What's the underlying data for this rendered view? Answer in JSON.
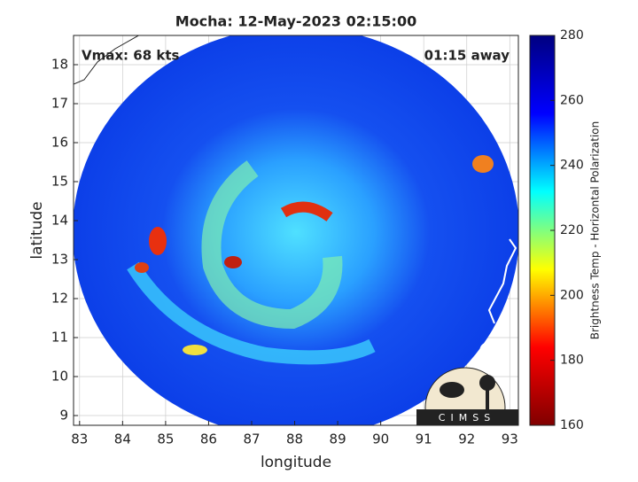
{
  "map": {
    "title": "Mocha: 12-May-2023 02:15:00",
    "annotation_left": "Vmax: 68 kts",
    "annotation_right": "01:15 away",
    "xlabel": "longitude",
    "ylabel": "latitude",
    "xlim": [
      82.86,
      93.2
    ],
    "ylim": [
      8.75,
      18.75
    ],
    "xticks": [
      83,
      84,
      85,
      86,
      87,
      88,
      89,
      90,
      91,
      92,
      93
    ],
    "yticks": [
      9,
      10,
      11,
      12,
      13,
      14,
      15,
      16,
      17,
      18
    ],
    "grid": true,
    "colorbar": {
      "label": "Brightness Temp - Horizontal Polarization",
      "lim": [
        160,
        280
      ],
      "ticks": [
        160,
        180,
        200,
        220,
        240,
        260,
        280
      ],
      "colors": [
        "#800000",
        "#ff0000",
        "#ffff00",
        "#00ffff",
        "#0000ff",
        "#000080"
      ]
    },
    "logo": "CIMSS"
  }
}
